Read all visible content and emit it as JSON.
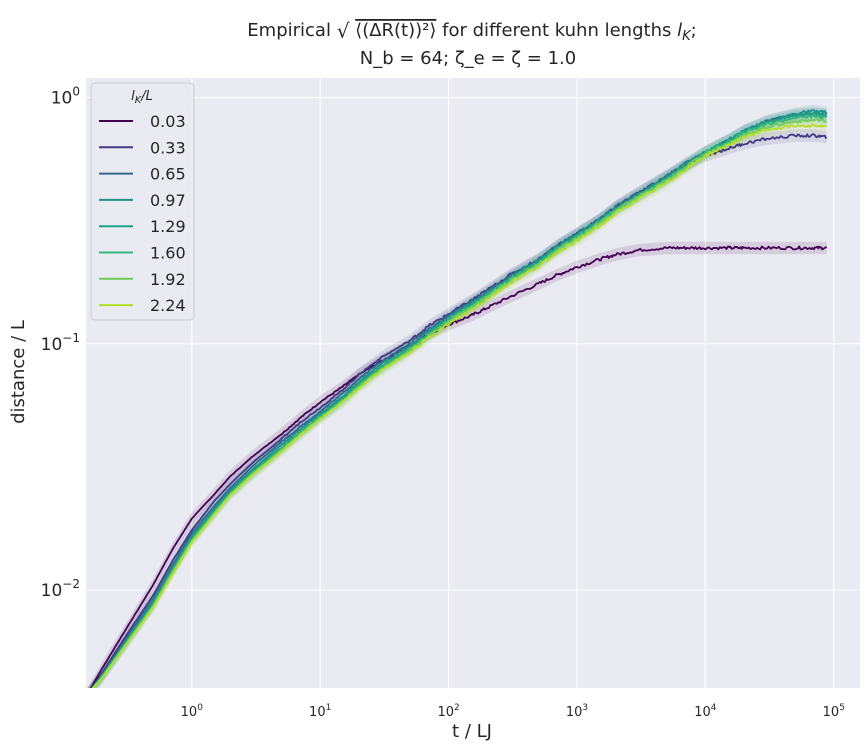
{
  "chart_data": {
    "type": "line",
    "title": {
      "line1_prefix": "Empirical ",
      "line1_expr": "⟨(ΔR(t))²⟩",
      "line1_suffix": " for different kuhn lengths ",
      "line1_var": "l",
      "line1_var_sub": "K",
      "line1_end": ";",
      "line2": "N_b = 64; ζ_e = ζ = 1.0"
    },
    "xlabel": "t / LJ",
    "ylabel": "distance / L",
    "xscale": "log",
    "yscale": "log",
    "xlim": [
      0.15,
      160000
    ],
    "ylim": [
      0.004,
      1.2
    ],
    "grid": true,
    "legend": {
      "title": "l_K/L",
      "placement": "top-left"
    },
    "x_ticks": [
      {
        "value": 1,
        "base": "10",
        "exp": "0"
      },
      {
        "value": 10,
        "base": "10",
        "exp": "1"
      },
      {
        "value": 100,
        "base": "10",
        "exp": "2"
      },
      {
        "value": 1000,
        "base": "10",
        "exp": "3"
      },
      {
        "value": 10000,
        "base": "10",
        "exp": "4"
      },
      {
        "value": 100000,
        "base": "10",
        "exp": "5"
      }
    ],
    "y_ticks": [
      {
        "value": 0.01,
        "base": "10",
        "exp": "−2"
      },
      {
        "value": 0.1,
        "base": "10",
        "exp": "−1"
      },
      {
        "value": 1,
        "base": "10",
        "exp": "0"
      }
    ],
    "x": [
      0.15,
      0.2,
      0.3,
      0.5,
      0.7,
      1,
      1.5,
      2,
      3,
      5,
      7,
      10,
      15,
      20,
      30,
      50,
      70,
      100,
      150,
      200,
      300,
      500,
      700,
      1000,
      1500,
      2000,
      3000,
      5000,
      7000,
      10000,
      15000,
      20000,
      30000,
      50000,
      70000,
      88000
    ],
    "series": [
      {
        "name": "0.03",
        "color": "#440154",
        "values": [
          0.0037,
          0.0048,
          0.0068,
          0.0105,
          0.0145,
          0.0195,
          0.0245,
          0.029,
          0.035,
          0.043,
          0.05,
          0.058,
          0.067,
          0.075,
          0.085,
          0.098,
          0.11,
          0.12,
          0.13,
          0.14,
          0.155,
          0.175,
          0.19,
          0.205,
          0.22,
          0.23,
          0.24,
          0.245,
          0.245,
          0.245,
          0.245,
          0.245,
          0.245,
          0.245,
          0.245,
          0.245
        ]
      },
      {
        "name": "0.33",
        "color": "#443983",
        "values": [
          0.0037,
          0.0046,
          0.0064,
          0.0095,
          0.013,
          0.0175,
          0.023,
          0.027,
          0.033,
          0.041,
          0.048,
          0.055,
          0.065,
          0.075,
          0.088,
          0.103,
          0.118,
          0.132,
          0.15,
          0.165,
          0.19,
          0.22,
          0.25,
          0.28,
          0.32,
          0.36,
          0.41,
          0.48,
          0.53,
          0.58,
          0.62,
          0.65,
          0.68,
          0.7,
          0.7,
          0.69
        ]
      },
      {
        "name": "0.65",
        "color": "#31688e",
        "values": [
          0.0037,
          0.0045,
          0.0062,
          0.0092,
          0.0125,
          0.017,
          0.022,
          0.026,
          0.032,
          0.04,
          0.046,
          0.053,
          0.063,
          0.072,
          0.085,
          0.1,
          0.115,
          0.13,
          0.148,
          0.163,
          0.188,
          0.22,
          0.25,
          0.28,
          0.32,
          0.36,
          0.41,
          0.48,
          0.54,
          0.6,
          0.67,
          0.73,
          0.8,
          0.85,
          0.86,
          0.85
        ]
      },
      {
        "name": "0.97",
        "color": "#21918c",
        "values": [
          0.0037,
          0.0045,
          0.0061,
          0.009,
          0.0122,
          0.0165,
          0.0215,
          0.0255,
          0.031,
          0.039,
          0.045,
          0.052,
          0.061,
          0.07,
          0.083,
          0.098,
          0.112,
          0.128,
          0.146,
          0.161,
          0.186,
          0.218,
          0.248,
          0.278,
          0.318,
          0.356,
          0.405,
          0.475,
          0.535,
          0.6,
          0.67,
          0.73,
          0.8,
          0.86,
          0.88,
          0.87
        ]
      },
      {
        "name": "1.29",
        "color": "#1fa187",
        "values": [
          0.0037,
          0.0045,
          0.006,
          0.0088,
          0.012,
          0.0162,
          0.021,
          0.025,
          0.0305,
          0.038,
          0.044,
          0.051,
          0.06,
          0.069,
          0.081,
          0.096,
          0.11,
          0.126,
          0.144,
          0.159,
          0.184,
          0.215,
          0.245,
          0.275,
          0.315,
          0.353,
          0.4,
          0.47,
          0.53,
          0.6,
          0.67,
          0.73,
          0.79,
          0.84,
          0.86,
          0.85
        ]
      },
      {
        "name": "1.60",
        "color": "#35b779",
        "values": [
          0.0037,
          0.0044,
          0.006,
          0.0087,
          0.0118,
          0.016,
          0.0207,
          0.0247,
          0.03,
          0.0375,
          0.0435,
          0.0505,
          0.059,
          0.068,
          0.08,
          0.095,
          0.109,
          0.125,
          0.142,
          0.157,
          0.182,
          0.213,
          0.242,
          0.272,
          0.312,
          0.35,
          0.398,
          0.465,
          0.525,
          0.595,
          0.66,
          0.72,
          0.78,
          0.83,
          0.84,
          0.83
        ]
      },
      {
        "name": "1.92",
        "color": "#6ece58",
        "values": [
          0.0037,
          0.0044,
          0.0059,
          0.0086,
          0.0117,
          0.0158,
          0.0205,
          0.0245,
          0.0298,
          0.037,
          0.043,
          0.05,
          0.0585,
          0.067,
          0.079,
          0.094,
          0.108,
          0.123,
          0.14,
          0.155,
          0.18,
          0.21,
          0.24,
          0.268,
          0.308,
          0.346,
          0.395,
          0.46,
          0.52,
          0.59,
          0.65,
          0.7,
          0.76,
          0.8,
          0.81,
          0.8
        ]
      },
      {
        "name": "2.24",
        "color": "#b5de2b",
        "values": [
          0.0037,
          0.0044,
          0.0059,
          0.0085,
          0.0115,
          0.0156,
          0.0203,
          0.0243,
          0.0295,
          0.0365,
          0.0425,
          0.0495,
          0.058,
          0.066,
          0.078,
          0.092,
          0.106,
          0.12,
          0.137,
          0.152,
          0.176,
          0.206,
          0.235,
          0.262,
          0.3,
          0.338,
          0.385,
          0.45,
          0.51,
          0.58,
          0.64,
          0.69,
          0.74,
          0.77,
          0.77,
          0.76
        ]
      }
    ]
  }
}
